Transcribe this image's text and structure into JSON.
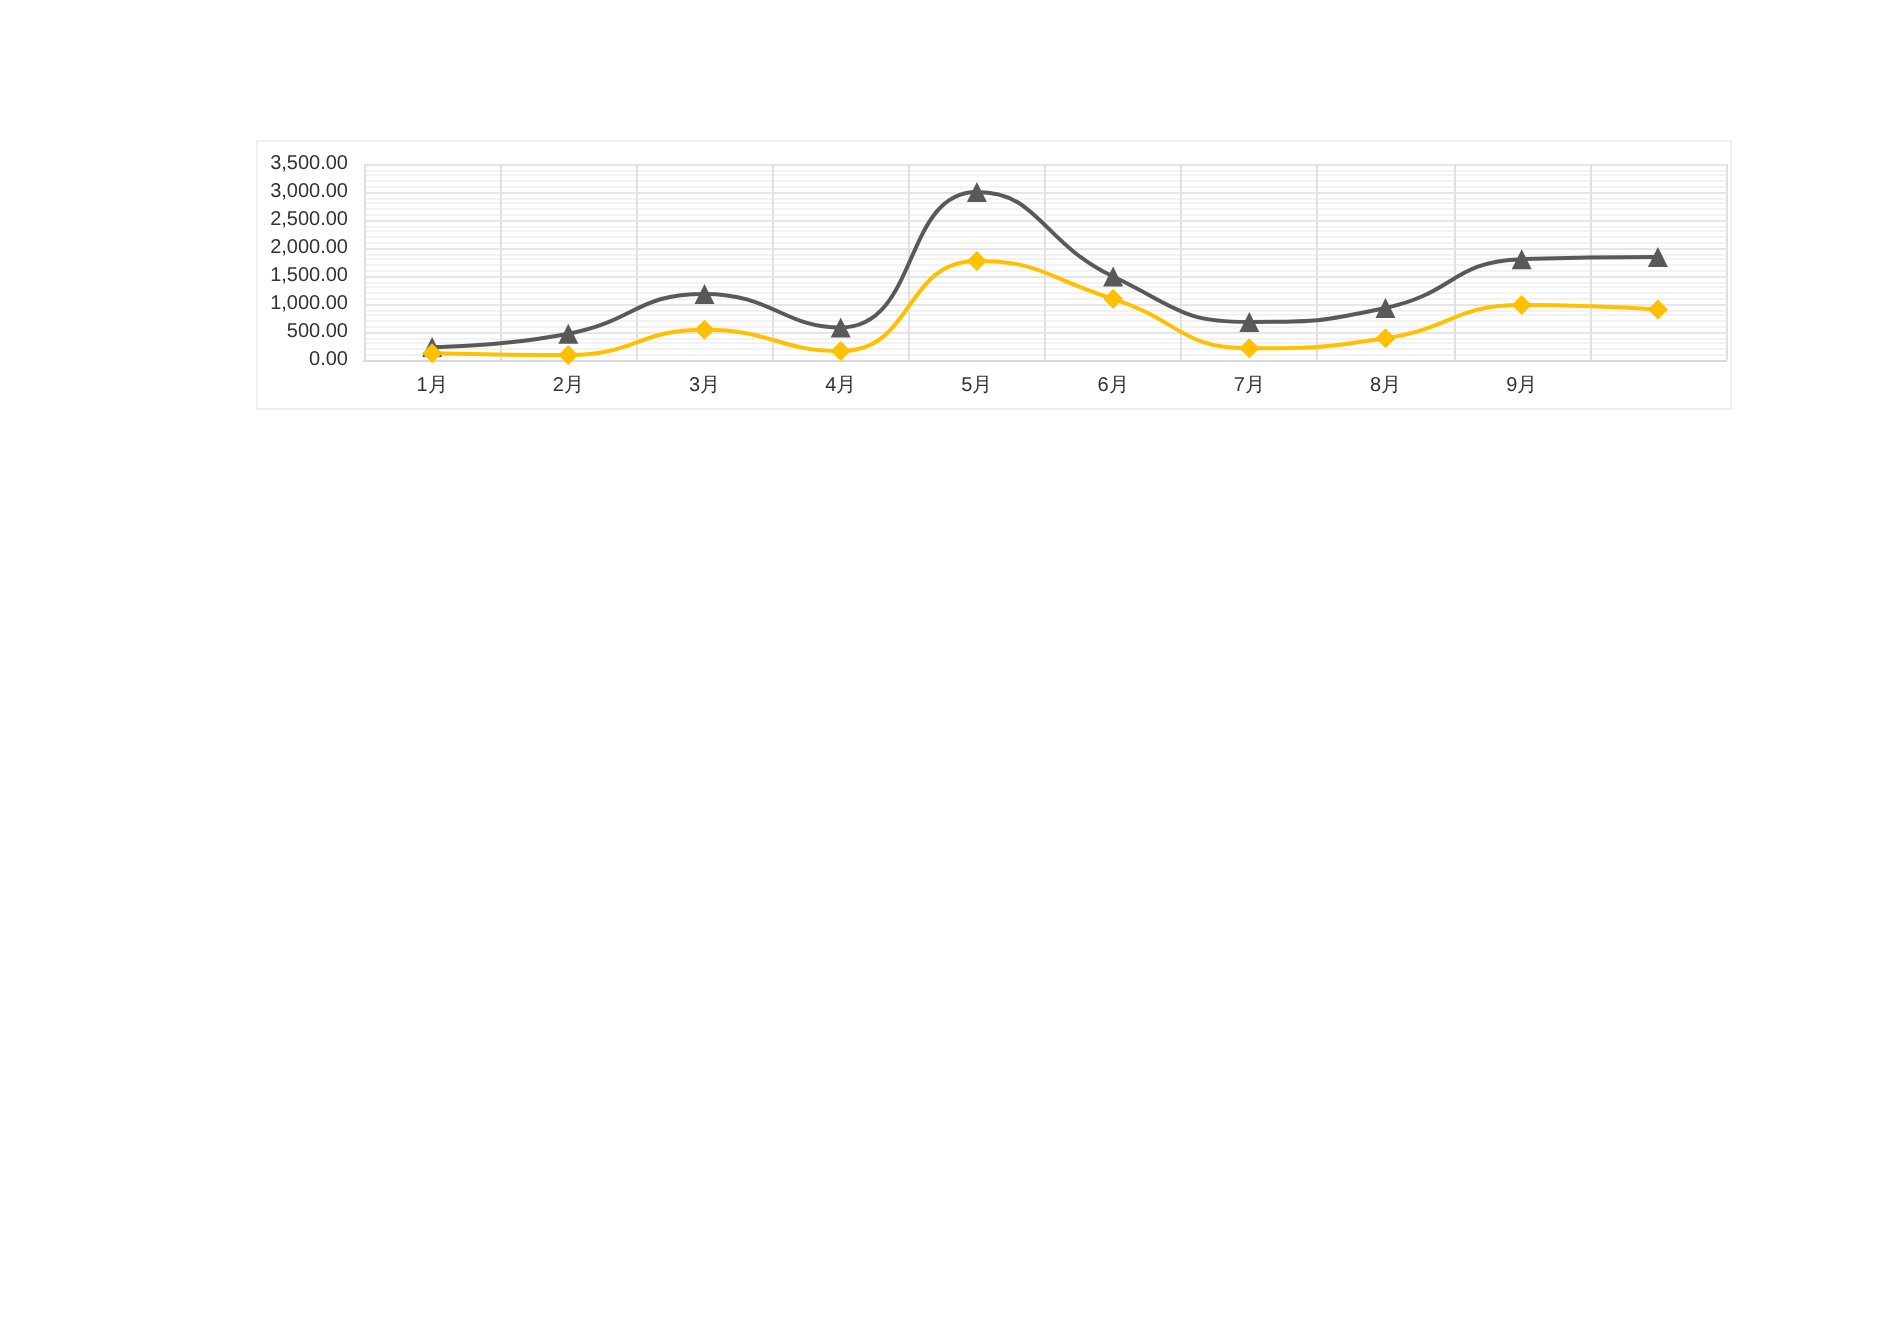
{
  "chart_data": {
    "type": "line",
    "categories": [
      "1月",
      "2月",
      "3月",
      "4月",
      "5月",
      "6月",
      "7月",
      "8月",
      "9月",
      null
    ],
    "series": [
      {
        "color": "#595959",
        "marker": "triangle",
        "values": [
          230,
          470,
          1180,
          580,
          3000,
          1490,
          680,
          930,
          1800,
          1840
        ]
      },
      {
        "color": "#ffc000",
        "marker": "diamond",
        "values": [
          120,
          90,
          540,
          160,
          1770,
          1090,
          210,
          390,
          980,
          900
        ]
      }
    ],
    "ylim": [
      0,
      3500
    ],
    "yticks": [
      {
        "value": 0,
        "label": "0.00"
      },
      {
        "value": 500,
        "label": "500.00"
      },
      {
        "value": 1000,
        "label": "1,000.00"
      },
      {
        "value": 1500,
        "label": "1,500.00"
      },
      {
        "value": 2000,
        "label": "2,000.00"
      },
      {
        "value": 2500,
        "label": "2,500.00"
      },
      {
        "value": 3000,
        "label": "3,000.00"
      },
      {
        "value": 3500,
        "label": "3,500.00"
      }
    ],
    "grid": true
  }
}
